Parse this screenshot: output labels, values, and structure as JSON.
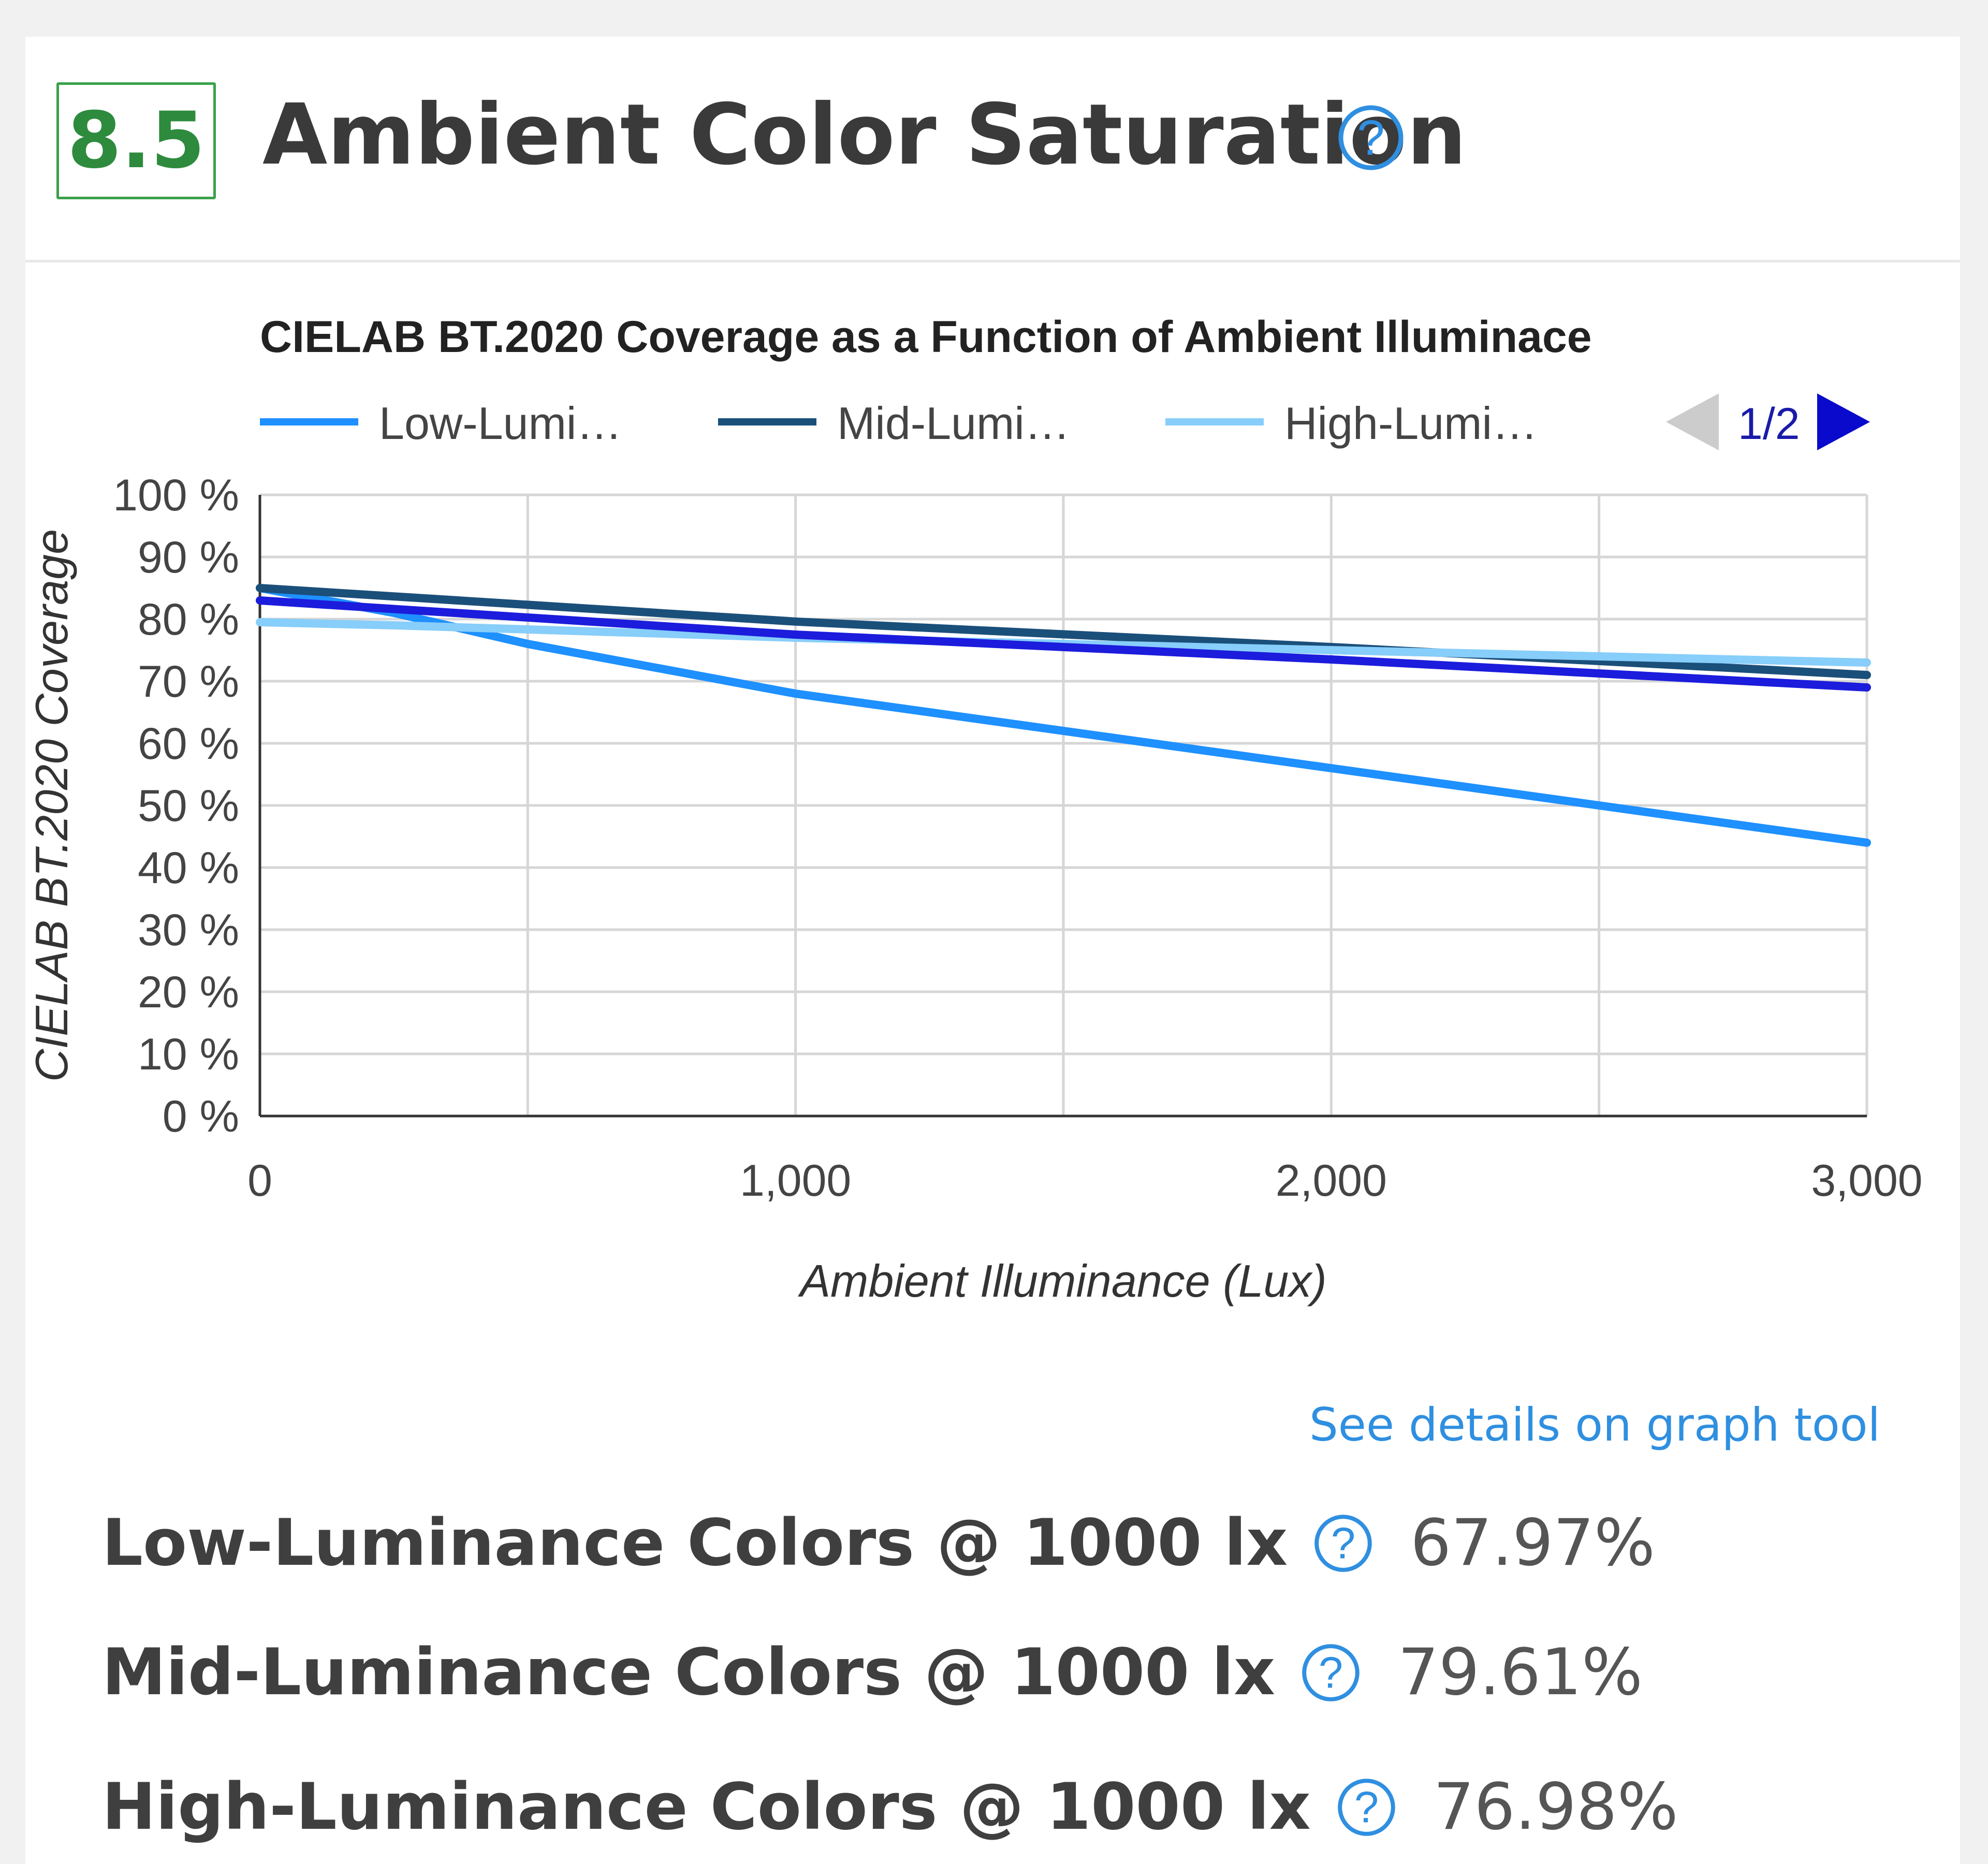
{
  "header": {
    "score": "8.5",
    "title": "Ambient Color Saturation",
    "help_icon": "question-circle-icon"
  },
  "chart_data": {
    "type": "line",
    "title": "CIELAB BT.2020 Coverage as a Function of Ambient Illuminace",
    "xlabel": "Ambient Illuminance (Lux)",
    "ylabel": "CIELAB BT.2020 Coverage",
    "xlim": [
      0,
      3000
    ],
    "ylim": [
      0,
      100
    ],
    "x_ticks": [
      "0",
      "1,000",
      "2,000",
      "3,000"
    ],
    "y_ticks": [
      "0 %",
      "10 %",
      "20 %",
      "30 %",
      "40 %",
      "50 %",
      "60 %",
      "70 %",
      "80 %",
      "90 %",
      "100 %"
    ],
    "grid": true,
    "legend_position": "top",
    "legend_page": "1/2",
    "legend": [
      {
        "label": "Low-Lumi…",
        "color": "#1e90ff"
      },
      {
        "label": "Mid-Lumi…",
        "color": "#1a4f7a"
      },
      {
        "label": "High-Lumi…",
        "color": "#87cefa"
      }
    ],
    "series": [
      {
        "color": "#1e90ff",
        "x": [
          0,
          250,
          500,
          1000,
          1500,
          2000,
          2500,
          3000
        ],
        "y": [
          85,
          81,
          76,
          68,
          62,
          56,
          50,
          44
        ]
      },
      {
        "color": "#1a4f7a",
        "x": [
          0,
          1000,
          2000,
          3000
        ],
        "y": [
          85,
          79.6,
          75.5,
          71
        ]
      },
      {
        "color": "#87cefa",
        "x": [
          0,
          250,
          1000,
          2000,
          3000
        ],
        "y": [
          79.5,
          79,
          77,
          75,
          73
        ]
      },
      {
        "color": "#1c1cdc",
        "x": [
          0,
          1000,
          2000,
          3000
        ],
        "y": [
          83,
          77.5,
          73.5,
          69
        ]
      }
    ]
  },
  "link": {
    "label": "See details on graph tool"
  },
  "metrics": [
    {
      "label": "Low-Luminance Colors @ 1000 lx",
      "value": "67.97%"
    },
    {
      "label": "Mid-Luminance Colors @ 1000 lx",
      "value": "79.61%"
    },
    {
      "label": "High-Luminance Colors @ 1000 lx",
      "value": "76.98%"
    }
  ],
  "colors": {
    "score_border": "#3aa14a",
    "link": "#2f8fe0",
    "help_icon": "#2f8fe0"
  }
}
